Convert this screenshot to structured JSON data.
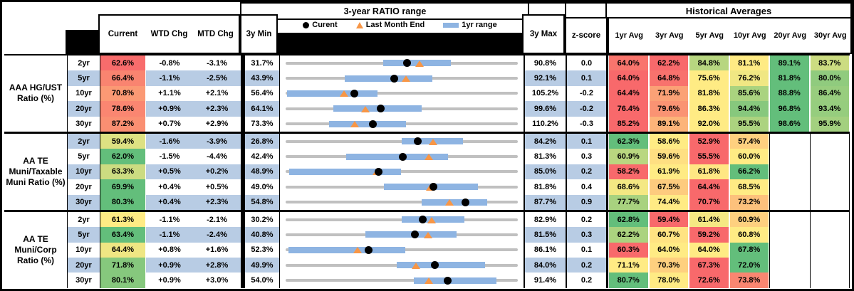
{
  "header": {
    "range_section_title": "3-year RATIO range",
    "hist_section_title": "Historical Averages",
    "col_current": "Current",
    "col_wtd": "WTD Chg",
    "col_mtd": "MTD Chg",
    "col_3y_min": "3y Min",
    "col_3y_max": "3y Max",
    "col_zscore": "z-score",
    "avg_cols": [
      "1yr Avg",
      "3yr Avg",
      "5yr Avg",
      "10yr Avg",
      "20yr Avg",
      "30yr Avg"
    ],
    "legend": {
      "current": "Curent",
      "last_month": "Last Month End",
      "range_1yr": "1yr range"
    }
  },
  "colors": {
    "scale_low": "#F8696B",
    "scale_mid": "#FFEB84",
    "scale_high": "#63BE7B",
    "stripe": "#B8CCE4",
    "bar_1yr": "#8EB4E2",
    "track": "#C0C0C0",
    "dot": "#000000",
    "triangle": "#F79646"
  },
  "groups": [
    {
      "label": "AAA HG/UST Ratio (%)",
      "rows": [
        {
          "tenor": "2yr",
          "current": "62.6%",
          "wtd": "-0.8%",
          "mtd": "-3.1%",
          "min": "31.7%",
          "max": "90.8%",
          "z": "0.0",
          "last_month": 65.7,
          "bar_lo": 56.5,
          "bar_hi": 73.7,
          "avgs": [
            "64.0%",
            "62.2%",
            "84.8%",
            "81.1%",
            "89.1%",
            "83.7%"
          ]
        },
        {
          "tenor": "5yr",
          "current": "66.4%",
          "wtd": "-1.1%",
          "mtd": "-2.5%",
          "min": "43.9%",
          "max": "92.1%",
          "z": "0.1",
          "last_month": 68.9,
          "bar_lo": 56.2,
          "bar_hi": 74.4,
          "avgs": [
            "64.0%",
            "64.8%",
            "75.6%",
            "76.2%",
            "81.8%",
            "80.0%"
          ]
        },
        {
          "tenor": "10yr",
          "current": "70.8%",
          "wtd": "+1.1%",
          "mtd": "+2.1%",
          "min": "56.4%",
          "max": "105.2%",
          "z": "-0.2",
          "last_month": 68.7,
          "bar_lo": 56.7,
          "bar_hi": 75.7,
          "avgs": [
            "64.4%",
            "71.9%",
            "81.8%",
            "85.6%",
            "88.8%",
            "86.4%"
          ]
        },
        {
          "tenor": "20yr",
          "current": "78.6%",
          "wtd": "+0.9%",
          "mtd": "+2.3%",
          "min": "64.1%",
          "max": "99.6%",
          "z": "-0.2",
          "last_month": 76.3,
          "bar_lo": 71.4,
          "bar_hi": 84.9,
          "avgs": [
            "76.4%",
            "79.6%",
            "86.3%",
            "94.4%",
            "96.8%",
            "93.4%"
          ]
        },
        {
          "tenor": "30yr",
          "current": "87.2%",
          "wtd": "+0.7%",
          "mtd": "+2.9%",
          "min": "73.3%",
          "max": "110.2%",
          "z": "-0.3",
          "last_month": 84.3,
          "bar_lo": 80.2,
          "bar_hi": 92.4,
          "avgs": [
            "85.2%",
            "89.1%",
            "92.0%",
            "95.5%",
            "98.6%",
            "95.9%"
          ]
        }
      ]
    },
    {
      "label": "AA TE Muni/Taxable Muni Ratio (%)",
      "rows": [
        {
          "tenor": "2yr",
          "current": "59.4%",
          "wtd": "-1.6%",
          "mtd": "-3.9%",
          "min": "26.8%",
          "max": "84.2%",
          "z": "0.1",
          "last_month": 63.3,
          "bar_lo": 55.5,
          "bar_hi": 70.7,
          "avgs": [
            "62.3%",
            "58.6%",
            "52.9%",
            "57.4%",
            null,
            null
          ]
        },
        {
          "tenor": "5yr",
          "current": "62.0%",
          "wtd": "-1.5%",
          "mtd": "-4.4%",
          "min": "42.4%",
          "max": "81.3%",
          "z": "0.3",
          "last_month": 66.4,
          "bar_lo": 52.6,
          "bar_hi": 69.6,
          "avgs": [
            "60.9%",
            "59.6%",
            "55.5%",
            "60.0%",
            null,
            null
          ]
        },
        {
          "tenor": "10yr",
          "current": "63.3%",
          "wtd": "+0.5%",
          "mtd": "+0.2%",
          "min": "48.9%",
          "max": "85.0%",
          "z": "0.2",
          "last_month": 63.1,
          "bar_lo": 49.4,
          "bar_hi": 66.8,
          "avgs": [
            "58.2%",
            "61.9%",
            "61.8%",
            "66.2%",
            null,
            null
          ]
        },
        {
          "tenor": "20yr",
          "current": "69.9%",
          "wtd": "+0.4%",
          "mtd": "+0.5%",
          "min": "49.0%",
          "max": "81.8%",
          "z": "0.4",
          "last_month": 69.4,
          "bar_lo": 62.9,
          "bar_hi": 76.2,
          "avgs": [
            "68.6%",
            "67.5%",
            "64.4%",
            "68.5%",
            null,
            null
          ]
        },
        {
          "tenor": "30yr",
          "current": "80.3%",
          "wtd": "+0.4%",
          "mtd": "+2.3%",
          "min": "54.8%",
          "max": "87.7%",
          "z": "0.9",
          "last_month": 78.0,
          "bar_lo": 74.1,
          "bar_hi": 83.4,
          "avgs": [
            "77.7%",
            "74.4%",
            "70.7%",
            "73.2%",
            null,
            null
          ]
        }
      ]
    },
    {
      "label": "AA TE Muni/Corp Ratio (%)",
      "rows": [
        {
          "tenor": "2yr",
          "current": "61.3%",
          "wtd": "-1.1%",
          "mtd": "-2.1%",
          "min": "30.2%",
          "max": "82.9%",
          "z": "0.2",
          "last_month": 63.4,
          "bar_lo": 56.6,
          "bar_hi": 70.7,
          "avgs": [
            "62.8%",
            "59.4%",
            "61.4%",
            "60.9%",
            null,
            null
          ]
        },
        {
          "tenor": "5yr",
          "current": "63.4%",
          "wtd": "-1.1%",
          "mtd": "-2.4%",
          "min": "40.8%",
          "max": "81.5%",
          "z": "0.3",
          "last_month": 65.8,
          "bar_lo": 54.8,
          "bar_hi": 70.7,
          "avgs": [
            "62.2%",
            "60.7%",
            "59.2%",
            "60.8%",
            null,
            null
          ]
        },
        {
          "tenor": "10yr",
          "current": "64.4%",
          "wtd": "+0.8%",
          "mtd": "+1.6%",
          "min": "52.3%",
          "max": "86.1%",
          "z": "0.1",
          "last_month": 62.8,
          "bar_lo": 52.7,
          "bar_hi": 69.7,
          "avgs": [
            "60.3%",
            "64.0%",
            "64.0%",
            "67.8%",
            null,
            null
          ]
        },
        {
          "tenor": "20yr",
          "current": "71.8%",
          "wtd": "+0.9%",
          "mtd": "+2.8%",
          "min": "49.9%",
          "max": "84.0%",
          "z": "0.2",
          "last_month": 69.0,
          "bar_lo": 66.2,
          "bar_hi": 79.2,
          "avgs": [
            "71.1%",
            "70.3%",
            "67.3%",
            "72.0%",
            null,
            null
          ]
        },
        {
          "tenor": "30yr",
          "current": "80.1%",
          "wtd": "+0.9%",
          "mtd": "+3.0%",
          "min": "54.0%",
          "max": "91.4%",
          "z": "0.2",
          "last_month": 77.1,
          "bar_lo": 74.7,
          "bar_hi": 88.0,
          "avgs": [
            "80.7%",
            "78.0%",
            "72.6%",
            "73.8%",
            null,
            null
          ]
        }
      ]
    }
  ]
}
